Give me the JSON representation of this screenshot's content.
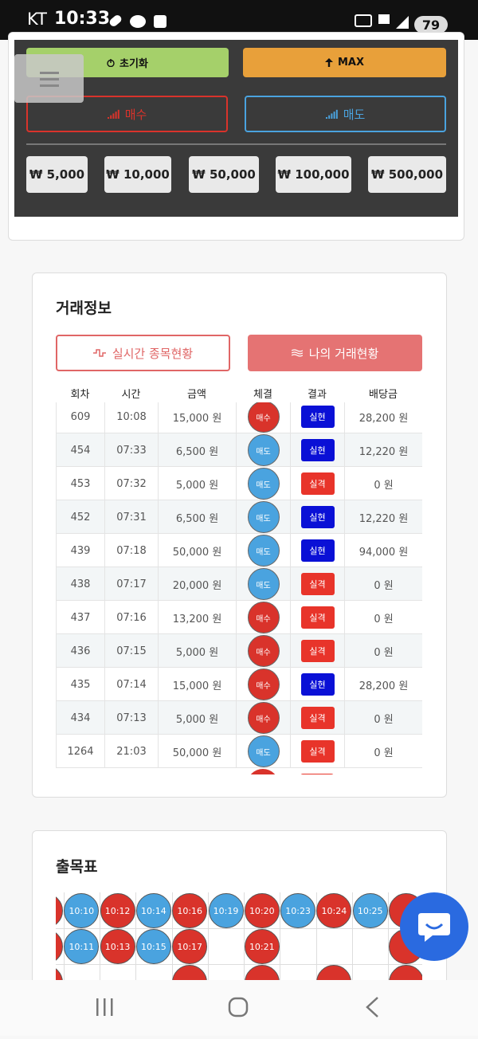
{
  "status_bar": {
    "carrier": "KT",
    "time": "10:33",
    "battery": "79"
  },
  "controls": {
    "reset": "초기화",
    "max": "MAX",
    "buy": "매수",
    "sell": "매도",
    "amounts": [
      "₩ 5,000",
      "₩ 10,000",
      "₩ 50,000",
      "₩ 100,000",
      "₩ 500,000"
    ]
  },
  "trade_info": {
    "title": "거래정보",
    "tabs": [
      "실시간 종목현황",
      "나의 거래현황"
    ],
    "headers": [
      "회차",
      "시간",
      "금액",
      "체결",
      "결과",
      "배당금"
    ],
    "rows": [
      [
        "609",
        "10:08",
        "15,000 원",
        "매수",
        "실현",
        "28,200 원"
      ],
      [
        "454",
        "07:33",
        "6,500 원",
        "매도",
        "실현",
        "12,220 원"
      ],
      [
        "453",
        "07:32",
        "5,000 원",
        "매도",
        "실격",
        "0 원"
      ],
      [
        "452",
        "07:31",
        "6,500 원",
        "매도",
        "실현",
        "12,220 원"
      ],
      [
        "439",
        "07:18",
        "50,000 원",
        "매도",
        "실현",
        "94,000 원"
      ],
      [
        "438",
        "07:17",
        "20,000 원",
        "매도",
        "실격",
        "0 원"
      ],
      [
        "437",
        "07:16",
        "13,200 원",
        "매수",
        "실격",
        "0 원"
      ],
      [
        "436",
        "07:15",
        "5,000 원",
        "매수",
        "실격",
        "0 원"
      ],
      [
        "435",
        "07:14",
        "15,000 원",
        "매수",
        "실현",
        "28,200 원"
      ],
      [
        "434",
        "07:13",
        "5,000 원",
        "매수",
        "실격",
        "0 원"
      ],
      [
        "1264",
        "21:03",
        "50,000 원",
        "매도",
        "실격",
        "0 원"
      ]
    ]
  },
  "schedule": {
    "title": "출목표",
    "columns": [
      [
        {
          "label": "10:10",
          "color": "#4aa3df"
        },
        {
          "label": "10:11",
          "color": "#4aa3df"
        }
      ],
      [
        {
          "label": "10:12",
          "color": "#d9332b"
        },
        {
          "label": "10:13",
          "color": "#d9332b"
        }
      ],
      [
        {
          "label": "10:14",
          "color": "#4aa3df"
        },
        {
          "label": "10:15",
          "color": "#4aa3df"
        }
      ],
      [
        {
          "label": "10:16",
          "color": "#d9332b"
        },
        {
          "label": "10:17",
          "color": "#d9332b"
        }
      ],
      [
        {
          "label": "10:19",
          "color": "#4aa3df"
        },
        null
      ],
      [
        {
          "label": "10:20",
          "color": "#d9332b"
        },
        {
          "label": "10:21",
          "color": "#d9332b"
        }
      ],
      [
        {
          "label": "10:23",
          "color": "#4aa3df"
        },
        null
      ],
      [
        {
          "label": "10:24",
          "color": "#d9332b"
        },
        null
      ],
      [
        {
          "label": "10:25",
          "color": "#4aa3df"
        },
        null
      ]
    ]
  }
}
